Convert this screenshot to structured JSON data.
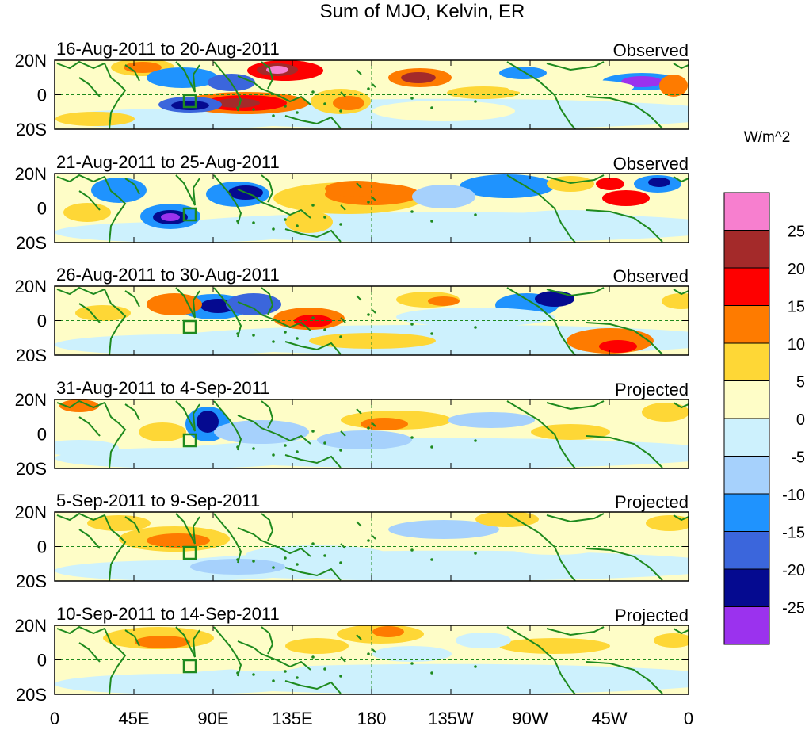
{
  "title": "Sum of MJO, Kelvin, ER",
  "panels": [
    {
      "date_range": "16-Aug-2011 to 20-Aug-2011",
      "status": "Observed"
    },
    {
      "date_range": "21-Aug-2011 to 25-Aug-2011",
      "status": "Observed"
    },
    {
      "date_range": "26-Aug-2011 to 30-Aug-2011",
      "status": "Observed"
    },
    {
      "date_range": "31-Aug-2011 to 4-Sep-2011",
      "status": "Projected"
    },
    {
      "date_range": "5-Sep-2011 to 9-Sep-2011",
      "status": "Projected"
    },
    {
      "date_range": "10-Sep-2011 to 14-Sep-2011",
      "status": "Projected"
    }
  ],
  "lat_labels": [
    "20N",
    "0",
    "20S"
  ],
  "lon_labels": [
    "0",
    "45E",
    "90E",
    "135E",
    "180",
    "135W",
    "90W",
    "45W",
    "0"
  ],
  "colorbar": {
    "unit": "W/m^2",
    "tick_labels": [
      "25",
      "20",
      "15",
      "10",
      "5",
      "0",
      "-5",
      "-10",
      "-15",
      "-20",
      "-25"
    ],
    "colors": [
      "#f77fcf",
      "#a42a2a",
      "#fe0000",
      "#fe7b00",
      "#fed736",
      "#fefdc7",
      "#cdf1fd",
      "#a6d1fc",
      "#1f93fe",
      "#3b66dc",
      "#050a90",
      "#9b32ee"
    ]
  },
  "map_colors": {
    "coast": "#1e8a1e",
    "box": "#1e8a1e"
  }
}
